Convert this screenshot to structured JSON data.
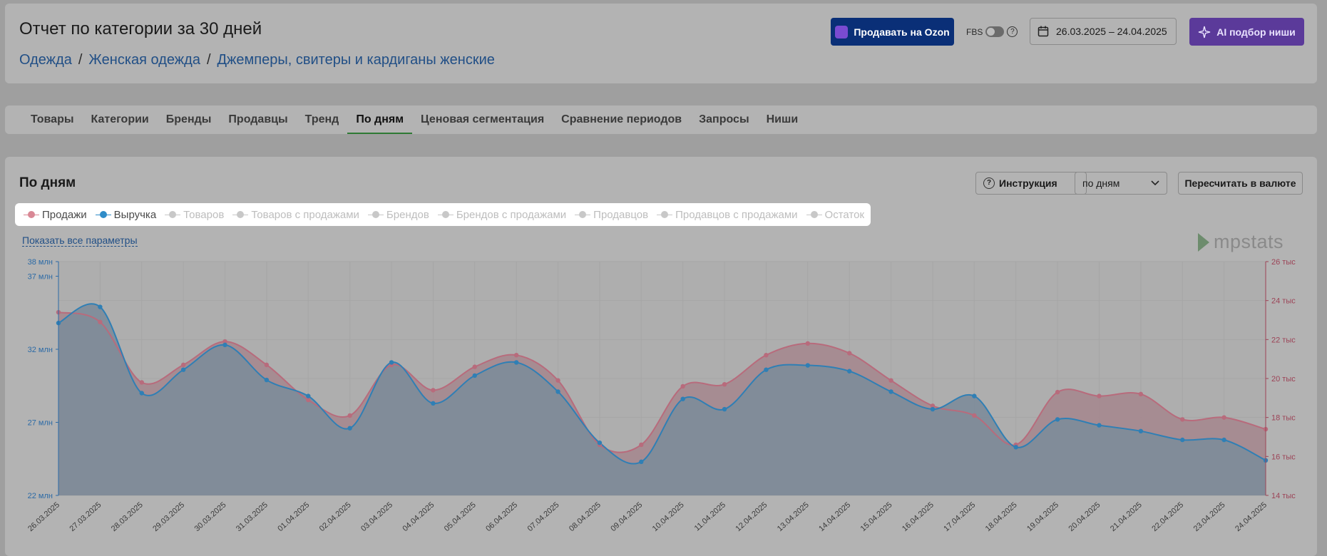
{
  "header": {
    "title": "Отчет по категории за 30 дней",
    "breadcrumbs": [
      "Одежда",
      "Женская одежда",
      "Джемперы, свитеры и кардиганы женские"
    ],
    "breadcrumb_separator": "/",
    "ozon_button": "Продавать на Ozon",
    "fbs_label": "FBS",
    "fbs_help": "?",
    "date_range": "26.03.2025 – 24.04.2025",
    "ai_button": "AI подбор ниши"
  },
  "tabs": [
    {
      "label": "Товары"
    },
    {
      "label": "Категории"
    },
    {
      "label": "Бренды"
    },
    {
      "label": "Продавцы"
    },
    {
      "label": "Тренд"
    },
    {
      "label": "По дням",
      "active": true
    },
    {
      "label": "Ценовая сегментация"
    },
    {
      "label": "Сравнение периодов"
    },
    {
      "label": "Запросы"
    },
    {
      "label": "Ниши"
    }
  ],
  "section": {
    "title": "По дням",
    "instruction_button": "Инструкция",
    "period_select": "по дням",
    "convert_button": "Пересчитать в валюте",
    "show_all_link": "Показать все параметры",
    "brand": "mpstats"
  },
  "legend": [
    {
      "label": "Продажи",
      "color": "#d98895",
      "active": true
    },
    {
      "label": "Выручка",
      "color": "#2f8cc8",
      "active": true
    },
    {
      "label": "Товаров",
      "color": "#c8c8c8",
      "active": false
    },
    {
      "label": "Товаров с продажами",
      "color": "#c8c8c8",
      "active": false
    },
    {
      "label": "Брендов",
      "color": "#c8c8c8",
      "active": false
    },
    {
      "label": "Брендов с продажами",
      "color": "#c8c8c8",
      "active": false
    },
    {
      "label": "Продавцов",
      "color": "#c8c8c8",
      "active": false
    },
    {
      "label": "Продавцов с продажами",
      "color": "#c8c8c8",
      "active": false
    },
    {
      "label": "Остаток",
      "color": "#c8c8c8",
      "active": false
    }
  ],
  "chart_data": {
    "type": "area",
    "x": [
      "26.03.2025",
      "27.03.2025",
      "28.03.2025",
      "29.03.2025",
      "30.03.2025",
      "31.03.2025",
      "01.04.2025",
      "02.04.2025",
      "03.04.2025",
      "04.04.2025",
      "05.04.2025",
      "06.04.2025",
      "07.04.2025",
      "08.04.2025",
      "09.04.2025",
      "10.04.2025",
      "11.04.2025",
      "12.04.2025",
      "13.04.2025",
      "14.04.2025",
      "15.04.2025",
      "16.04.2025",
      "17.04.2025",
      "18.04.2025",
      "19.04.2025",
      "20.04.2025",
      "21.04.2025",
      "22.04.2025",
      "23.04.2025",
      "24.04.2025"
    ],
    "series": [
      {
        "name": "Выручка",
        "axis": "left",
        "color": "#2f7fb5",
        "values": [
          33.8,
          34.9,
          29.0,
          30.6,
          32.3,
          29.9,
          28.8,
          26.6,
          31.1,
          28.3,
          30.2,
          31.1,
          29.1,
          25.6,
          24.3,
          28.6,
          27.9,
          30.6,
          30.9,
          30.5,
          29.1,
          27.9,
          28.8,
          25.3,
          27.2,
          26.8,
          26.4,
          25.8,
          25.8,
          24.4
        ]
      },
      {
        "name": "Продажи",
        "axis": "right",
        "color": "#b86b7c",
        "values": [
          23.4,
          22.9,
          19.8,
          20.7,
          21.9,
          20.7,
          18.9,
          18.1,
          20.7,
          19.4,
          20.6,
          21.2,
          19.9,
          16.6,
          16.6,
          19.6,
          19.7,
          21.2,
          21.8,
          21.3,
          19.9,
          18.6,
          18.1,
          16.6,
          19.3,
          19.1,
          19.2,
          17.9,
          18.0,
          17.4
        ]
      }
    ],
    "y_left": {
      "ticks": [
        "22 млн",
        "27 млн",
        "32 млн",
        "37 млн",
        "38 млн"
      ],
      "range": [
        22,
        38
      ],
      "unit": "млн"
    },
    "y_right": {
      "ticks": [
        "14 тыс",
        "16 тыс",
        "18 тыс",
        "20 тыс",
        "22 тыс",
        "24 тыс",
        "26 тыс"
      ],
      "range": [
        14,
        26
      ],
      "unit": "тыс"
    },
    "grid": true
  }
}
